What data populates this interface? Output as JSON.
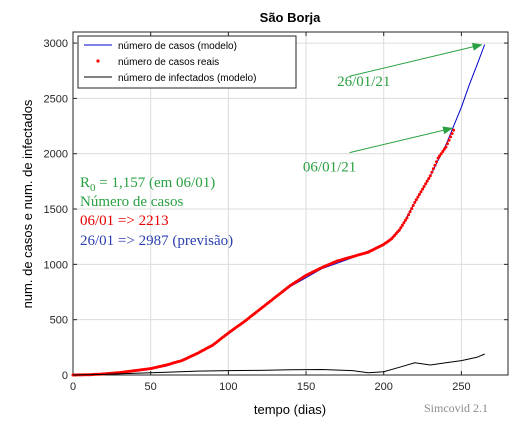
{
  "chart_data": {
    "type": "line",
    "title": "São Borja",
    "xlabel": "tempo (dias)",
    "ylabel": "num. de casos e num. de infectados",
    "xlim": [
      0,
      280
    ],
    "ylim": [
      0,
      3100
    ],
    "xticks": [
      0,
      50,
      100,
      150,
      200,
      250
    ],
    "yticks": [
      0,
      500,
      1000,
      1500,
      2000,
      2500,
      3000
    ],
    "grid": true,
    "legend_position": "top-left",
    "series": [
      {
        "name": "número de casos (modelo)",
        "style": "line",
        "color": "#0000cc",
        "x": [
          0,
          20,
          40,
          60,
          80,
          100,
          120,
          140,
          160,
          180,
          200,
          210,
          220,
          230,
          240,
          250,
          255,
          260,
          265
        ],
        "y": [
          0,
          10,
          35,
          80,
          190,
          370,
          590,
          800,
          960,
          1060,
          1180,
          1300,
          1560,
          1800,
          2080,
          2420,
          2620,
          2800,
          2987
        ]
      },
      {
        "name": "número de casos reais",
        "style": "markers",
        "color": "#ff0000",
        "x": [
          0,
          10,
          20,
          30,
          40,
          50,
          60,
          70,
          80,
          90,
          100,
          110,
          120,
          130,
          140,
          150,
          160,
          170,
          180,
          190,
          200,
          205,
          210,
          215,
          220,
          225,
          230,
          235,
          240,
          245
        ],
        "y": [
          0,
          2,
          10,
          22,
          40,
          58,
          90,
          130,
          195,
          270,
          380,
          480,
          590,
          700,
          810,
          900,
          970,
          1030,
          1070,
          1110,
          1180,
          1230,
          1310,
          1420,
          1560,
          1680,
          1800,
          1960,
          2060,
          2213
        ]
      },
      {
        "name": "número de infectados (modelo)",
        "style": "line",
        "color": "#000000",
        "x": [
          0,
          20,
          40,
          60,
          80,
          100,
          120,
          140,
          160,
          180,
          190,
          200,
          210,
          220,
          230,
          240,
          250,
          260,
          265
        ],
        "y": [
          0,
          5,
          15,
          25,
          35,
          40,
          42,
          48,
          50,
          40,
          20,
          30,
          70,
          110,
          90,
          110,
          130,
          160,
          190
        ]
      }
    ],
    "annotations": [
      {
        "text": "26/01/21",
        "color": "#2aa142",
        "x": 170,
        "y": 2610
      },
      {
        "text": "06/01/21",
        "color": "#2aa142",
        "x": 148,
        "y": 1840
      }
    ],
    "arrows": [
      {
        "from": [
          178,
          2700
        ],
        "to": [
          263,
          2985
        ],
        "color": "#2aa142"
      },
      {
        "from": [
          178,
          2010
        ],
        "to": [
          244,
          2230
        ],
        "color": "#2aa142"
      }
    ],
    "text_block": [
      {
        "text": "R",
        "sub": "0",
        "rest": " = 1,157 (em 06/01)",
        "color": "#2aa142"
      },
      {
        "text": "Número de casos",
        "color": "#2aa142"
      },
      {
        "text": "06/01 => 2213",
        "color": "#e60000"
      },
      {
        "text": "26/01 => 2987 (previsão)",
        "color": "#2b3fb0"
      }
    ],
    "watermark": "Simcovid 2.1"
  }
}
